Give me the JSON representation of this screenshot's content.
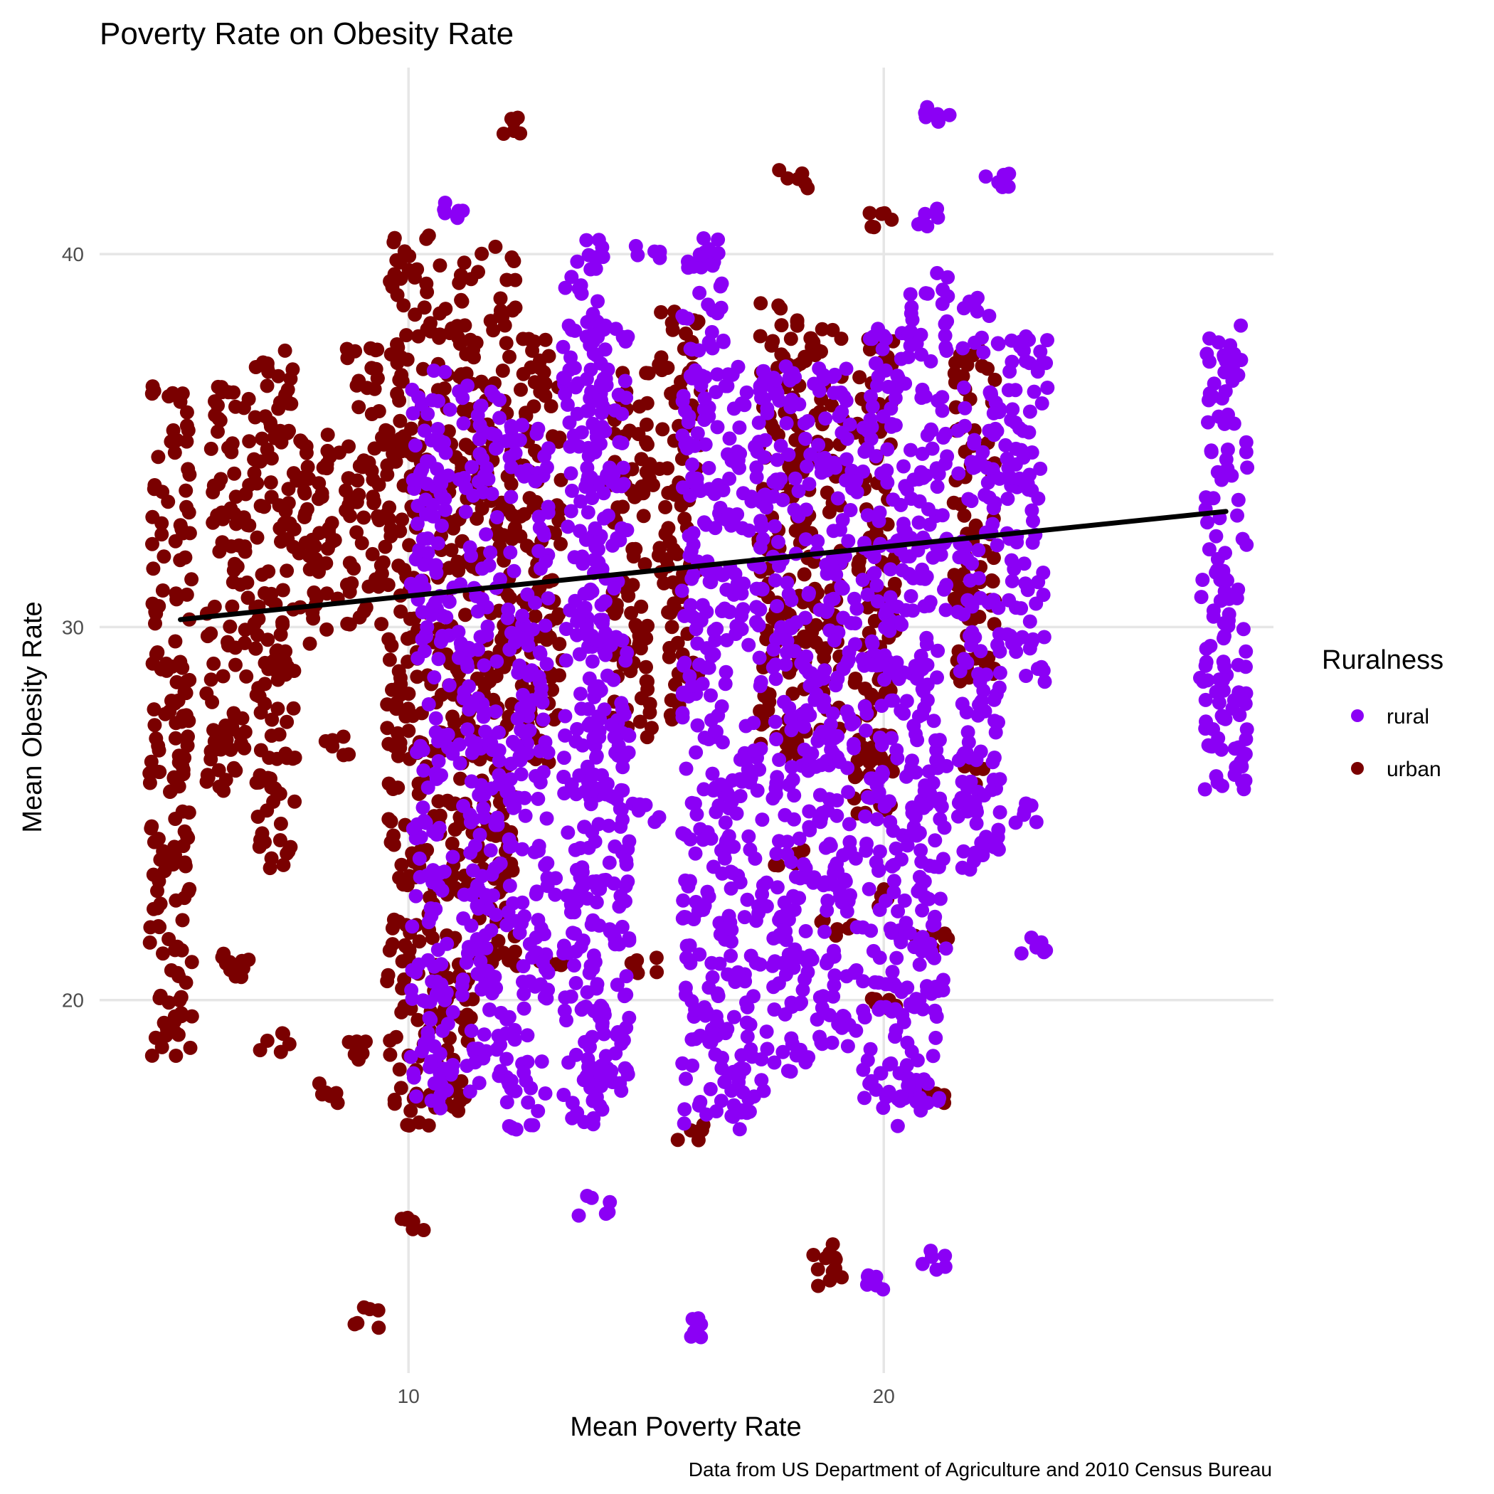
{
  "chart_data": {
    "type": "scatter",
    "title": "Poverty Rate on Obesity Rate",
    "xlabel": "Mean Poverty Rate",
    "ylabel": "Mean Obesity Rate",
    "caption": "Data from US Department of Agriculture and 2010 Census Bureau",
    "xlim": [
      3.5,
      28.2
    ],
    "ylim": [
      10.0,
      45.0
    ],
    "x_ticks": [
      10,
      20
    ],
    "y_ticks": [
      20,
      30,
      40
    ],
    "grid": true,
    "legend": {
      "title": "Ruralness",
      "placement": "right",
      "entries": [
        {
          "label": "rural",
          "color": "#8b00f5"
        },
        {
          "label": "urban",
          "color": "#7a0000"
        }
      ]
    },
    "trend_line": {
      "x": [
        5.2,
        27.2
      ],
      "y": [
        30.2,
        33.1
      ],
      "color": "#000000"
    },
    "series": [
      {
        "name": "urban",
        "color": "#7a0000",
        "clusters": [
          {
            "x": 5.0,
            "y": [
              18.5,
              36.5
            ]
          },
          {
            "x": 6.2,
            "y": [
              25.5,
              36.5
            ]
          },
          {
            "x": 7.2,
            "y": [
              23.5,
              38.0
            ]
          },
          {
            "x": 8.1,
            "y": [
              29.5,
              35.2
            ]
          },
          {
            "x": 9.1,
            "y": [
              30.0,
              37.5
            ]
          },
          {
            "x": 10.0,
            "y": [
              16.5,
              40.5
            ]
          },
          {
            "x": 10.9,
            "y": [
              17.0,
              40.0
            ]
          },
          {
            "x": 11.8,
            "y": [
              20.5,
              40.2
            ]
          },
          {
            "x": 12.8,
            "y": [
              26.0,
              37.8
            ]
          },
          {
            "x": 14.7,
            "y": [
              27.0,
              37.0
            ]
          },
          {
            "x": 15.7,
            "y": [
              27.5,
              38.5
            ]
          },
          {
            "x": 17.8,
            "y": [
              26.5,
              39.0
            ]
          },
          {
            "x": 18.7,
            "y": [
              27.0,
              38.0
            ]
          },
          {
            "x": 19.8,
            "y": [
              25.0,
              38.0
            ]
          },
          {
            "x": 21.9,
            "y": [
              28.5,
              37.5
            ]
          }
        ],
        "points": [
          [
            6.3,
            21.0
          ],
          [
            6.3,
            20.8
          ],
          [
            9.0,
            18.7
          ],
          [
            8.3,
            17.5
          ],
          [
            10.2,
            14.0
          ],
          [
            9.1,
            11.5
          ],
          [
            12.3,
            43.5
          ],
          [
            18.1,
            42.0
          ],
          [
            20.0,
            41.0
          ],
          [
            18.8,
            12.6
          ],
          [
            18.8,
            13.2
          ],
          [
            19.0,
            22.0
          ],
          [
            16.0,
            16.5
          ],
          [
            22.0,
            31.0
          ],
          [
            22.0,
            26.0
          ],
          [
            22.0,
            29.0
          ],
          [
            12.0,
            21.0
          ],
          [
            15.0,
            21.0
          ],
          [
            13.0,
            21.0
          ],
          [
            20.0,
            20.0
          ],
          [
            20.0,
            22.8
          ],
          [
            21.0,
            17.5
          ],
          [
            21.0,
            21.5
          ],
          [
            18.0,
            23.8
          ],
          [
            5.1,
            26.0
          ],
          [
            7.2,
            18.9
          ],
          [
            8.5,
            26.8
          ]
        ]
      },
      {
        "name": "rural",
        "color": "#8b00f5",
        "clusters": [
          {
            "x": 10.5,
            "y": [
              17.0,
              37.0
            ]
          },
          {
            "x": 11.5,
            "y": [
              17.5,
              36.5
            ]
          },
          {
            "x": 12.5,
            "y": [
              16.5,
              35.5
            ]
          },
          {
            "x": 13.7,
            "y": [
              16.5,
              40.0
            ]
          },
          {
            "x": 14.2,
            "y": [
              17.5,
              38.0
            ]
          },
          {
            "x": 16.2,
            "y": [
              16.5,
              40.0
            ]
          },
          {
            "x": 17.1,
            "y": [
              16.5,
              37.0
            ]
          },
          {
            "x": 18.1,
            "y": [
              18.0,
              37.0
            ]
          },
          {
            "x": 19.0,
            "y": [
              18.5,
              37.5
            ]
          },
          {
            "x": 20.0,
            "y": [
              16.5,
              38.0
            ]
          },
          {
            "x": 20.9,
            "y": [
              17.0,
              39.5
            ]
          },
          {
            "x": 22.0,
            "y": [
              23.5,
              39.0
            ]
          },
          {
            "x": 23.0,
            "y": [
              28.5,
              38.0
            ]
          },
          {
            "x": 27.2,
            "y": [
              25.5,
              38.2
            ]
          }
        ],
        "points": [
          [
            11.0,
            41.2
          ],
          [
            13.9,
            40.2
          ],
          [
            15.1,
            40.0
          ],
          [
            16.2,
            40.2
          ],
          [
            21.1,
            43.8
          ],
          [
            22.3,
            42.0
          ],
          [
            21.0,
            41.0
          ],
          [
            13.9,
            14.5
          ],
          [
            16.1,
            11.2
          ],
          [
            20.0,
            12.5
          ],
          [
            21.0,
            13.0
          ],
          [
            23.1,
            21.5
          ],
          [
            23.1,
            25.0
          ],
          [
            22.3,
            24.0
          ],
          [
            20.6,
            17.5
          ],
          [
            19.0,
            23.0
          ],
          [
            13.0,
            23.0
          ],
          [
            14.0,
            23.0
          ],
          [
            15.0,
            25.0
          ],
          [
            16.5,
            25.5
          ],
          [
            27.0,
            31.0
          ],
          [
            27.0,
            28.8
          ],
          [
            27.3,
            26.0
          ]
        ]
      }
    ]
  }
}
